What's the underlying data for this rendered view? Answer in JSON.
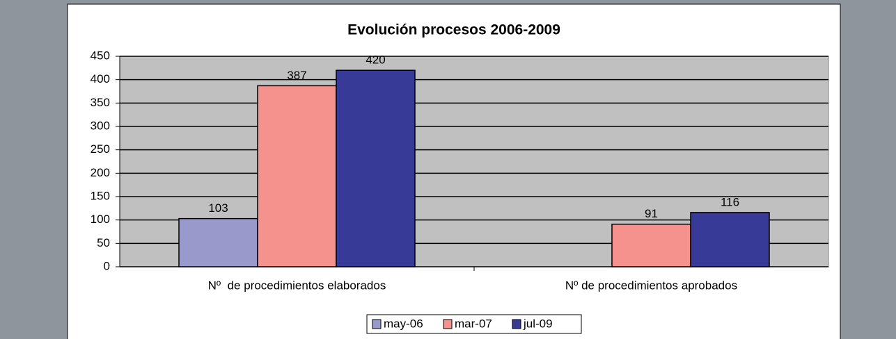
{
  "chart_data": {
    "type": "bar",
    "title": "Evolución procesos 2006-2009",
    "categories": [
      "Nº  de procedimientos elaborados",
      "Nº de procedimientos aprobados"
    ],
    "series": [
      {
        "name": "may-06",
        "color": "#9999cc",
        "values": [
          103,
          null
        ]
      },
      {
        "name": "mar-07",
        "color": "#f5928e",
        "values": [
          387,
          91
        ]
      },
      {
        "name": "jul-09",
        "color": "#373a97",
        "values": [
          420,
          116
        ]
      }
    ],
    "ylim": [
      0,
      450
    ],
    "yticks": [
      0,
      50,
      100,
      150,
      200,
      250,
      300,
      350,
      400,
      450
    ],
    "grid": true,
    "legend": "bottom"
  }
}
